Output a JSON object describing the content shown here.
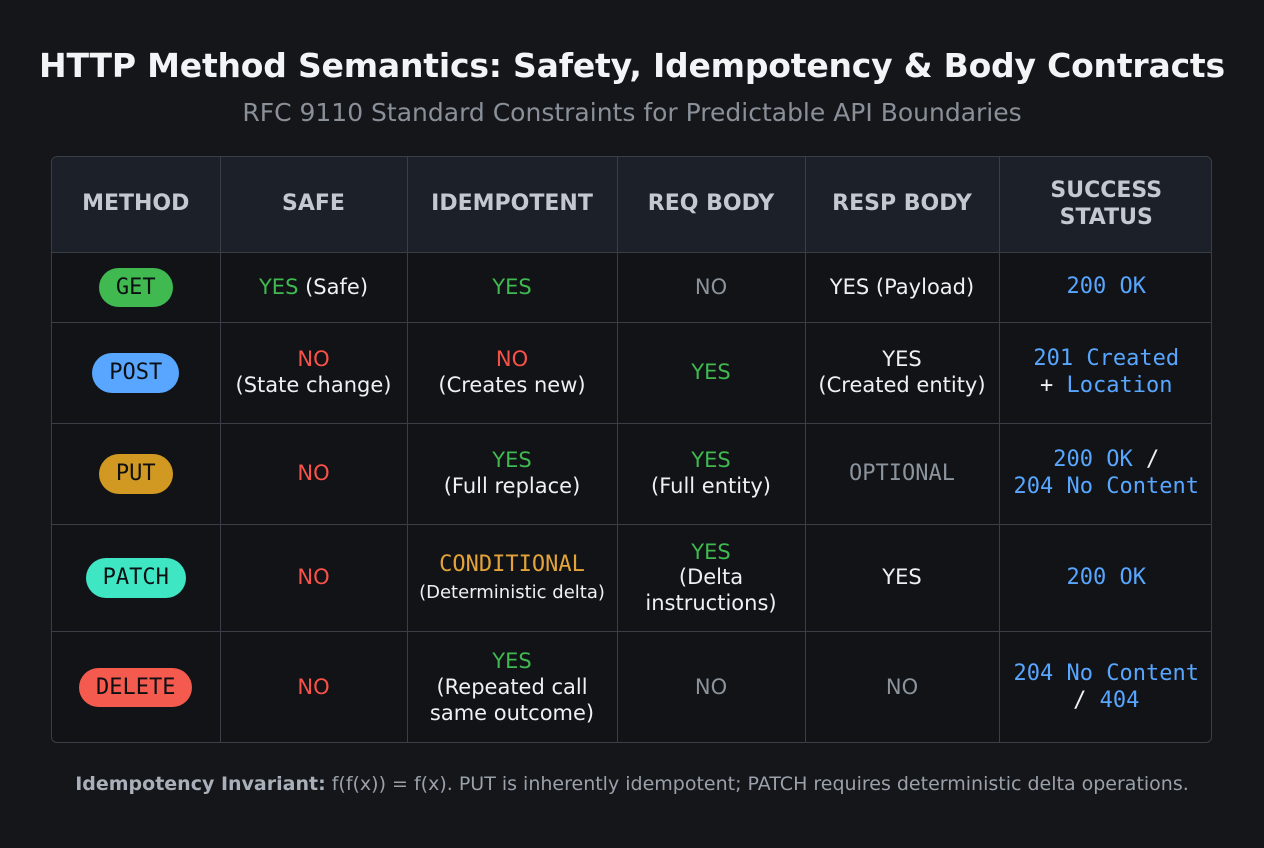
{
  "title": "HTTP Method Semantics: Safety, Idempotency & Body Contracts",
  "subtitle": "RFC 9110 Standard Constraints for Predictable API Boundaries",
  "colors": {
    "yes": "#3fb950",
    "no": "#f85149",
    "neutral": "#8b939d",
    "conditional": "#e3a33a",
    "status": "#58a6ff",
    "get": "#3fb950",
    "post": "#58a6ff",
    "put": "#d29922",
    "patch": "#3ee6c4",
    "delete": "#f55a4e"
  },
  "headers": {
    "method": "METHOD",
    "safe": "SAFE",
    "idempotent": "IDEMPOTENT",
    "req_body": "REQ BODY",
    "resp_body": "RESP BODY",
    "success_status_1": "SUCCESS",
    "success_status_2": "STATUS"
  },
  "rows": {
    "get": {
      "method": "GET",
      "safe": "YES",
      "safe_note": "(Safe)",
      "idempotent": "YES",
      "req_body": "NO",
      "resp_body": "YES (Payload)",
      "status": "200 OK"
    },
    "post": {
      "method": "POST",
      "safe": "NO",
      "safe_note": "(State change)",
      "idempotent": "NO",
      "idempotent_note": "(Creates new)",
      "req_body": "YES",
      "resp_body": "YES",
      "resp_body_note": "(Created entity)",
      "status_1": "201 Created",
      "status_plus": "+",
      "status_2": "Location"
    },
    "put": {
      "method": "PUT",
      "safe": "NO",
      "idempotent": "YES",
      "idempotent_note": "(Full replace)",
      "req_body": "YES",
      "req_body_note": "(Full entity)",
      "resp_body": "OPTIONAL",
      "status_1": "200 OK",
      "status_sep": "/",
      "status_2": "204 No Content"
    },
    "patch": {
      "method": "PATCH",
      "safe": "NO",
      "idempotent": "CONDITIONAL",
      "idempotent_note": "(Deterministic delta)",
      "req_body": "YES",
      "req_body_note_1": "(Delta",
      "req_body_note_2": "instructions)",
      "resp_body": "YES",
      "status": "200 OK"
    },
    "delete": {
      "method": "DELETE",
      "safe": "NO",
      "idempotent": "YES",
      "idempotent_note_1": "(Repeated call",
      "idempotent_note_2": "same outcome)",
      "req_body": "NO",
      "resp_body": "NO",
      "status_1": "204 No Content",
      "status_sep": "/",
      "status_2": "404"
    }
  },
  "footer": {
    "label": "Idempotency Invariant:",
    "text": "f(f(x)) = f(x). PUT is inherently idempotent; PATCH requires deterministic delta operations."
  }
}
